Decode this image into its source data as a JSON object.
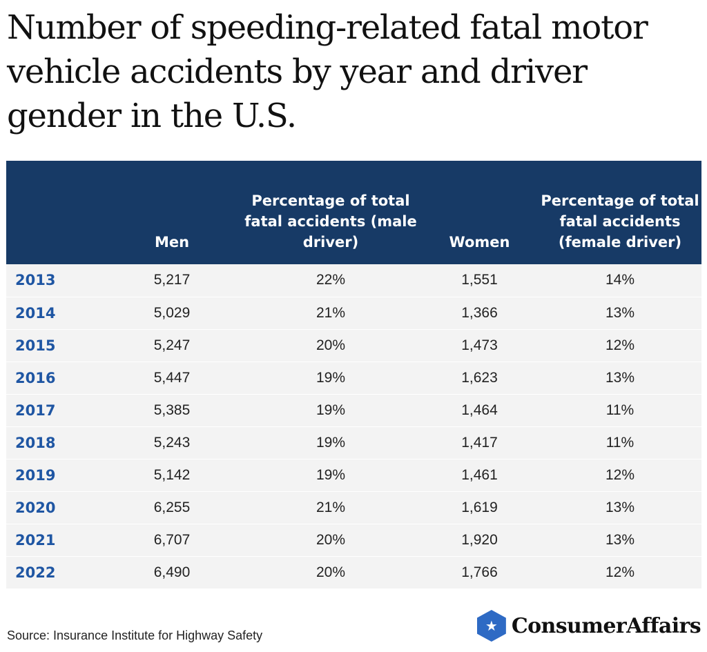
{
  "title": "Number of speeding-related fatal motor vehicle accidents by year and driver gender in the U.S.",
  "chart_data": {
    "type": "table",
    "title": "Number of speeding-related fatal motor vehicle accidents by year and driver gender in the U.S.",
    "columns": [
      "",
      "Men",
      "Percentage of total fatal accidents (male driver)",
      "Women",
      "Percentage of total fatal accidents (female driver)"
    ],
    "rows": [
      [
        "2013",
        "5,217",
        "22%",
        "1,551",
        "14%"
      ],
      [
        "2014",
        "5,029",
        "21%",
        "1,366",
        "13%"
      ],
      [
        "2015",
        "5,247",
        "20%",
        "1,473",
        "12%"
      ],
      [
        "2016",
        "5,447",
        "19%",
        "1,623",
        "13%"
      ],
      [
        "2017",
        "5,385",
        "19%",
        "1,464",
        "11%"
      ],
      [
        "2018",
        "5,243",
        "19%",
        "1,417",
        "11%"
      ],
      [
        "2019",
        "5,142",
        "19%",
        "1,461",
        "12%"
      ],
      [
        "2020",
        "6,255",
        "21%",
        "1,619",
        "13%"
      ],
      [
        "2021",
        "6,707",
        "20%",
        "1,920",
        "13%"
      ],
      [
        "2022",
        "6,490",
        "20%",
        "1,766",
        "12%"
      ]
    ]
  },
  "source": "Source: Insurance Institute for Highway Safety",
  "brand": {
    "name": "ConsumerAffairs",
    "icon": "star-hexagon-icon",
    "icon_glyph": "★"
  },
  "colors": {
    "header_bg": "#173a66",
    "year_text": "#1f56a3",
    "row_bg": "#f3f3f3",
    "brand_accent": "#2e6ac4"
  }
}
